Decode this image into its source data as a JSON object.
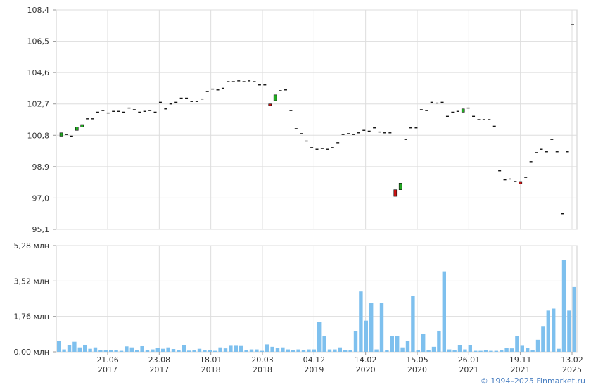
{
  "chart_data": [
    {
      "type": "candlestick",
      "ylim": [
        95.1,
        108.4
      ],
      "yticks": [
        "108,4",
        "106,5",
        "104,6",
        "102,7",
        "100,8",
        "98,9",
        "97,0",
        "95,1"
      ],
      "grid": true,
      "up_color": "#22aa22",
      "down_color": "#cc1111",
      "series": [
        {
          "values": [
            {
              "o": 100.75,
              "c": 100.95
            },
            {
              "o": 100.85,
              "c": 100.85
            },
            {
              "o": 100.75,
              "c": 100.75
            },
            {
              "o": 101.1,
              "c": 101.3
            },
            {
              "o": 101.3,
              "c": 101.45
            },
            {
              "o": 101.75,
              "c": 101.8
            },
            {
              "o": 101.8,
              "c": 101.8
            },
            {
              "o": 102.2,
              "c": 102.2
            },
            {
              "o": 102.3,
              "c": 102.3
            },
            {
              "o": 102.15,
              "c": 102.15
            },
            {
              "o": 102.25,
              "c": 102.25
            },
            {
              "o": 102.25,
              "c": 102.25
            },
            {
              "o": 102.2,
              "c": 102.2
            },
            {
              "o": 102.45,
              "c": 102.45
            },
            {
              "o": 102.35,
              "c": 102.35
            },
            {
              "o": 102.2,
              "c": 102.2
            },
            {
              "o": 102.25,
              "c": 102.25
            },
            {
              "o": 102.3,
              "c": 102.3
            },
            {
              "o": 102.2,
              "c": 102.2
            },
            {
              "o": 102.8,
              "c": 102.8
            },
            {
              "o": 102.4,
              "c": 102.4
            },
            {
              "o": 102.7,
              "c": 102.7
            },
            {
              "o": 102.8,
              "c": 102.8
            },
            {
              "o": 103.05,
              "c": 103.05
            },
            {
              "o": 103.05,
              "c": 103.05
            },
            {
              "o": 102.85,
              "c": 102.85
            },
            {
              "o": 102.85,
              "c": 102.85
            },
            {
              "o": 103.0,
              "c": 103.0
            },
            {
              "o": 103.45,
              "c": 103.45
            },
            {
              "o": 103.6,
              "c": 103.6
            },
            {
              "o": 103.55,
              "c": 103.55
            },
            {
              "o": 103.65,
              "c": 103.65
            },
            {
              "o": 104.05,
              "c": 104.05
            },
            {
              "o": 104.05,
              "c": 104.05
            },
            {
              "o": 104.1,
              "c": 104.1
            },
            {
              "o": 104.05,
              "c": 104.05
            },
            {
              "o": 104.1,
              "c": 104.1
            },
            {
              "o": 104.05,
              "c": 104.05
            },
            {
              "o": 103.85,
              "c": 103.85
            },
            {
              "o": 103.85,
              "c": 103.85
            },
            {
              "o": 102.7,
              "c": 102.6
            },
            {
              "o": 102.9,
              "c": 103.25
            },
            {
              "o": 103.5,
              "c": 103.5
            },
            {
              "o": 103.55,
              "c": 103.55
            },
            {
              "o": 102.3,
              "c": 102.3
            },
            {
              "o": 101.2,
              "c": 101.2
            },
            {
              "o": 100.9,
              "c": 100.9
            },
            {
              "o": 100.45,
              "c": 100.45
            },
            {
              "o": 100.05,
              "c": 100.05
            },
            {
              "o": 99.95,
              "c": 99.95
            },
            {
              "o": 100.0,
              "c": 100.0
            },
            {
              "o": 99.95,
              "c": 99.95
            },
            {
              "o": 100.05,
              "c": 100.05
            },
            {
              "o": 100.35,
              "c": 100.35
            },
            {
              "o": 100.85,
              "c": 100.85
            },
            {
              "o": 100.9,
              "c": 100.9
            },
            {
              "o": 100.85,
              "c": 100.85
            },
            {
              "o": 100.95,
              "c": 100.95
            },
            {
              "o": 101.1,
              "c": 101.1
            },
            {
              "o": 101.05,
              "c": 101.05
            },
            {
              "o": 101.25,
              "c": 101.25
            },
            {
              "o": 101.0,
              "c": 101.0
            },
            {
              "o": 100.95,
              "c": 100.95
            },
            {
              "o": 100.95,
              "c": 100.95
            },
            {
              "o": 97.5,
              "c": 97.1
            },
            {
              "o": 97.5,
              "c": 97.9
            },
            {
              "o": 100.55,
              "c": 100.55
            },
            {
              "o": 101.25,
              "c": 101.25
            },
            {
              "o": 101.25,
              "c": 101.25
            },
            {
              "o": 102.35,
              "c": 102.35
            },
            {
              "o": 102.3,
              "c": 102.3
            },
            {
              "o": 102.8,
              "c": 102.8
            },
            {
              "o": 102.75,
              "c": 102.75
            },
            {
              "o": 102.8,
              "c": 102.8
            },
            {
              "o": 101.9,
              "c": 101.95
            },
            {
              "o": 102.2,
              "c": 102.2
            },
            {
              "o": 102.25,
              "c": 102.25
            },
            {
              "o": 102.2,
              "c": 102.4
            },
            {
              "o": 102.45,
              "c": 102.45
            },
            {
              "o": 101.95,
              "c": 101.95
            },
            {
              "o": 101.75,
              "c": 101.75
            },
            {
              "o": 101.75,
              "c": 101.75
            },
            {
              "o": 101.75,
              "c": 101.75
            },
            {
              "o": 101.35,
              "c": 101.35
            },
            {
              "o": 98.65,
              "c": 98.65
            },
            {
              "o": 98.1,
              "c": 98.1
            },
            {
              "o": 98.15,
              "c": 98.15
            },
            {
              "o": 98.05,
              "c": 98.0
            },
            {
              "o": 98.0,
              "c": 97.85
            },
            {
              "o": 98.25,
              "c": 98.25
            },
            {
              "o": 99.2,
              "c": 99.2
            },
            {
              "o": 99.75,
              "c": 99.75
            },
            {
              "o": 99.95,
              "c": 99.95
            },
            {
              "o": 99.8,
              "c": 99.8
            },
            {
              "o": 100.55,
              "c": 100.55
            },
            {
              "o": 99.8,
              "c": 99.8
            },
            {
              "o": 96.05,
              "c": 96.05
            },
            {
              "o": 99.8,
              "c": 99.8
            },
            {
              "o": 107.5,
              "c": 107.5
            }
          ]
        }
      ]
    },
    {
      "type": "bar",
      "ylim": [
        0,
        5.28
      ],
      "yticks": [
        "5,28 млн",
        "3,52 млн",
        "1,76 млн",
        "0,00 млн"
      ],
      "grid": true,
      "bar_color": "#7ec0ee",
      "x_labels": [
        {
          "day": "21.06",
          "year": "2017"
        },
        {
          "day": "23.08",
          "year": "2017"
        },
        {
          "day": "18.01",
          "year": "2018"
        },
        {
          "day": "20.03",
          "year": "2018"
        },
        {
          "day": "04.12",
          "year": "2019"
        },
        {
          "day": "14.02",
          "year": "2020"
        },
        {
          "day": "15.05",
          "year": "2020"
        },
        {
          "day": "26.01",
          "year": "2021"
        },
        {
          "day": "19.11",
          "year": "2021"
        },
        {
          "day": "13.02",
          "year": "2025"
        }
      ],
      "values": [
        0.55,
        0.12,
        0.32,
        0.5,
        0.22,
        0.35,
        0.15,
        0.22,
        0.1,
        0.1,
        0.07,
        0.07,
        0.05,
        0.27,
        0.22,
        0.1,
        0.28,
        0.1,
        0.12,
        0.2,
        0.15,
        0.22,
        0.14,
        0.07,
        0.32,
        0.06,
        0.1,
        0.15,
        0.1,
        0.07,
        0.05,
        0.22,
        0.17,
        0.3,
        0.3,
        0.29,
        0.1,
        0.12,
        0.12,
        0.05,
        0.37,
        0.25,
        0.2,
        0.22,
        0.12,
        0.09,
        0.12,
        0.1,
        0.12,
        0.12,
        1.47,
        0.8,
        0.12,
        0.12,
        0.22,
        0.07,
        0.1,
        1.02,
        3.0,
        1.55,
        2.42,
        0.12,
        2.42,
        0.07,
        0.78,
        0.78,
        0.22,
        0.55,
        2.78,
        0.1,
        0.9,
        0.08,
        0.25,
        1.05,
        4.0,
        0.12,
        0.08,
        0.32,
        0.12,
        0.32,
        0.05,
        0.05,
        0.07,
        0.05,
        0.05,
        0.1,
        0.18,
        0.17,
        0.78,
        0.3,
        0.2,
        0.1,
        0.6,
        1.25,
        2.05,
        2.15,
        0.15,
        4.55,
        2.05,
        3.22
      ]
    }
  ],
  "credit": "© 1994–2025 Finmarket.ru"
}
